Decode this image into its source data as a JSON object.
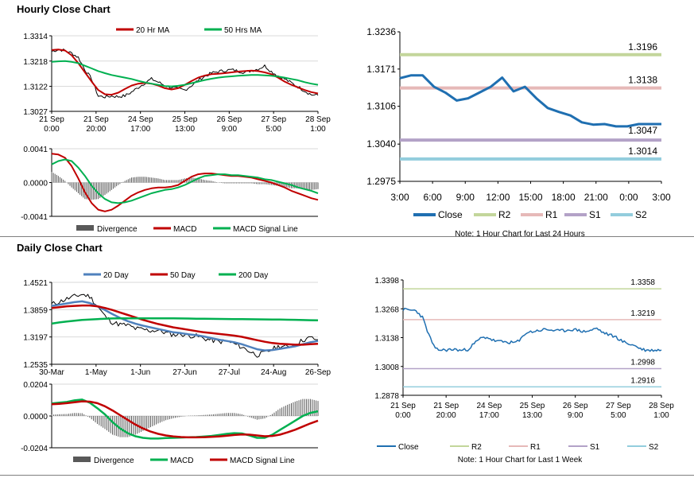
{
  "page": {
    "hourly_title": "Hourly Close Chart",
    "daily_title": "Daily Close Chart"
  },
  "chart_data": [
    {
      "id": "hourly_price",
      "type": "line",
      "title": "",
      "x_ticks": [
        [
          "21 Sep",
          "0:00"
        ],
        [
          "21 Sep",
          "20:00"
        ],
        [
          "24 Sep",
          "17:00"
        ],
        [
          "25 Sep",
          "13:00"
        ],
        [
          "26 Sep",
          "9:00"
        ],
        [
          "27 Sep",
          "5:00"
        ],
        [
          "28 Sep",
          "1:00"
        ]
      ],
      "y_ticks": [
        "1.3314",
        "1.3218",
        "1.3122",
        "1.3027"
      ],
      "ylim": [
        1.3027,
        1.3314
      ],
      "legend": [
        "20 Hr MA",
        "50 Hrs MA"
      ],
      "colors": {
        "price": "#000000",
        "ma20": "#c00000",
        "ma50": "#00b050"
      },
      "series": [
        {
          "name": "Close",
          "values": [
            1.3255,
            1.3262,
            1.3258,
            1.3248,
            1.3232,
            1.3185,
            1.315,
            1.3085,
            1.3082,
            1.3085,
            1.3083,
            1.3086,
            1.31,
            1.3118,
            1.3135,
            1.315,
            1.3138,
            1.3125,
            1.3118,
            1.3112,
            1.3108,
            1.3125,
            1.3145,
            1.316,
            1.3172,
            1.3178,
            1.3182,
            1.3185,
            1.318,
            1.3175,
            1.3182,
            1.3188,
            1.32,
            1.3178,
            1.3162,
            1.315,
            1.3135,
            1.312,
            1.3105,
            1.309,
            1.3088
          ]
        },
        {
          "name": "20 Hr MA",
          "values": [
            1.326,
            1.3262,
            1.3258,
            1.324,
            1.321,
            1.3175,
            1.314,
            1.3108,
            1.3092,
            1.309,
            1.3098,
            1.3112,
            1.3125,
            1.3132,
            1.3135,
            1.3132,
            1.3125,
            1.3115,
            1.311,
            1.3115,
            1.3128,
            1.3142,
            1.3155,
            1.3163,
            1.3168,
            1.317,
            1.3172,
            1.3175,
            1.3178,
            1.318,
            1.3182,
            1.318,
            1.3175,
            1.3168,
            1.3155,
            1.314,
            1.3128,
            1.3118,
            1.3108,
            1.31,
            1.3095
          ]
        },
        {
          "name": "50 Hrs MA",
          "values": [
            1.3215,
            1.3217,
            1.3218,
            1.3215,
            1.321,
            1.32,
            1.319,
            1.318,
            1.3172,
            1.3165,
            1.316,
            1.3155,
            1.315,
            1.3143,
            1.3137,
            1.3132,
            1.3128,
            1.3123,
            1.3122,
            1.3124,
            1.3128,
            1.3134,
            1.314,
            1.3146,
            1.3151,
            1.3155,
            1.3158,
            1.316,
            1.3162,
            1.3164,
            1.3165,
            1.3165,
            1.3164,
            1.3162,
            1.3159,
            1.3155,
            1.315,
            1.3145,
            1.3138,
            1.3132,
            1.3128
          ]
        }
      ]
    },
    {
      "id": "hourly_macd",
      "type": "line",
      "y_ticks": [
        "0.0041",
        "0.0000",
        "-0.0041"
      ],
      "ylim": [
        -0.0041,
        0.0041
      ],
      "legend": [
        "Divergence",
        "MACD",
        "MACD Signal Line"
      ],
      "colors": {
        "div": "#595959",
        "macd": "#c00000",
        "signal": "#00b050"
      },
      "series": [
        {
          "name": "MACD",
          "values": [
            0.0035,
            0.0034,
            0.003,
            0.002,
            0.0005,
            -0.0012,
            -0.0025,
            -0.0033,
            -0.0035,
            -0.0033,
            -0.0028,
            -0.0022,
            -0.0016,
            -0.0012,
            -0.0009,
            -0.0007,
            -0.0006,
            -0.0006,
            -0.0005,
            -0.0003,
            0.0002,
            0.0007,
            0.001,
            0.0011,
            0.0011,
            0.001,
            0.0009,
            0.0008,
            0.0008,
            0.0007,
            0.0006,
            0.0004,
            0.0002,
            0.0,
            -0.0003,
            -0.0006,
            -0.001,
            -0.0013,
            -0.0016,
            -0.0019,
            -0.0021
          ]
        },
        {
          "name": "MACD Signal Line",
          "values": [
            0.0022,
            0.0026,
            0.0028,
            0.0026,
            0.0018,
            0.0008,
            -0.0004,
            -0.0013,
            -0.002,
            -0.0024,
            -0.0025,
            -0.0024,
            -0.0022,
            -0.0019,
            -0.0016,
            -0.0013,
            -0.0011,
            -0.0009,
            -0.0008,
            -0.0006,
            -0.0003,
            0.0001,
            0.0005,
            0.0008,
            0.0009,
            0.001,
            0.001,
            0.0009,
            0.0009,
            0.0008,
            0.0007,
            0.0006,
            0.0004,
            0.0003,
            0.0001,
            -0.0001,
            -0.0003,
            -0.0006,
            -0.0008,
            -0.001,
            -0.0013
          ]
        }
      ]
    },
    {
      "id": "hourly_levels",
      "type": "line",
      "x_ticks": [
        "3:00",
        "6:00",
        "9:00",
        "12:00",
        "15:00",
        "18:00",
        "21:00",
        "0:00",
        "3:00"
      ],
      "y_ticks": [
        "1.3236",
        "1.3171",
        "1.3106",
        "1.3040",
        "1.2975"
      ],
      "ylim": [
        1.2975,
        1.3236
      ],
      "legend": [
        "Close",
        "R2",
        "R1",
        "S1",
        "S2"
      ],
      "note": "Note: 1 Hour Chart for Last 24 Hours",
      "levels": [
        {
          "name": "R2",
          "value": 1.3196,
          "label": "1.3196",
          "color": "#c3d69b"
        },
        {
          "name": "R1",
          "value": 1.3138,
          "label": "1.3138",
          "color": "#e6b9b8"
        },
        {
          "name": "S1",
          "value": 1.3047,
          "label": "1.3047",
          "color": "#b3a2c7"
        },
        {
          "name": "S2",
          "value": 1.3014,
          "label": "1.3014",
          "color": "#93cddd"
        }
      ],
      "colors": {
        "close": "#1f6fb1"
      },
      "series": [
        {
          "name": "Close",
          "values": [
            1.3155,
            1.316,
            1.316,
            1.314,
            1.313,
            1.3116,
            1.312,
            1.313,
            1.314,
            1.3156,
            1.3132,
            1.314,
            1.312,
            1.3103,
            1.3096,
            1.309,
            1.3078,
            1.3074,
            1.3075,
            1.3071,
            1.3071,
            1.3075,
            1.3075,
            1.3075
          ]
        }
      ]
    },
    {
      "id": "daily_price",
      "type": "line",
      "x_ticks": [
        "30-Mar",
        "1-May",
        "1-Jun",
        "27-Jun",
        "27-Jul",
        "24-Aug",
        "26-Sep"
      ],
      "y_ticks": [
        "1.4521",
        "1.3859",
        "1.3197",
        "1.2535"
      ],
      "ylim": [
        1.2535,
        1.4521
      ],
      "legend": [
        "20 Day",
        "50 Day",
        "200 Day"
      ],
      "colors": {
        "price": "#000000",
        "ma20": "#4f81bd",
        "ma50": "#c00000",
        "ma200": "#00b050"
      },
      "series": [
        {
          "name": "Close",
          "values": [
            1.399,
            1.405,
            1.412,
            1.418,
            1.423,
            1.418,
            1.395,
            1.37,
            1.355,
            1.35,
            1.348,
            1.34,
            1.338,
            1.335,
            1.336,
            1.33,
            1.325,
            1.327,
            1.323,
            1.322,
            1.316,
            1.312,
            1.308,
            1.31,
            1.303,
            1.295,
            1.285,
            1.276,
            1.281,
            1.29,
            1.298,
            1.295,
            1.302,
            1.312,
            1.318,
            1.313
          ]
        },
        {
          "name": "20 Day",
          "values": [
            1.395,
            1.398,
            1.401,
            1.404,
            1.406,
            1.402,
            1.394,
            1.385,
            1.375,
            1.366,
            1.358,
            1.352,
            1.347,
            1.343,
            1.339,
            1.335,
            1.331,
            1.329,
            1.326,
            1.324,
            1.321,
            1.317,
            1.313,
            1.31,
            1.307,
            1.302,
            1.296,
            1.29,
            1.287,
            1.288,
            1.291,
            1.294,
            1.297,
            1.302,
            1.307,
            1.31
          ]
        },
        {
          "name": "50 Day",
          "values": [
            1.39,
            1.392,
            1.394,
            1.395,
            1.396,
            1.396,
            1.394,
            1.39,
            1.385,
            1.379,
            1.373,
            1.367,
            1.361,
            1.356,
            1.351,
            1.347,
            1.343,
            1.34,
            1.337,
            1.334,
            1.331,
            1.329,
            1.327,
            1.325,
            1.323,
            1.32,
            1.316,
            1.312,
            1.308,
            1.305,
            1.303,
            1.302,
            1.301,
            1.301,
            1.302,
            1.303
          ]
        },
        {
          "name": "200 Day",
          "values": [
            1.352,
            1.355,
            1.357,
            1.359,
            1.361,
            1.362,
            1.363,
            1.364,
            1.3645,
            1.3648,
            1.365,
            1.365,
            1.365,
            1.365,
            1.365,
            1.365,
            1.3648,
            1.3645,
            1.3643,
            1.364,
            1.3638,
            1.3636,
            1.3634,
            1.3632,
            1.363,
            1.3628,
            1.3626,
            1.3624,
            1.3622,
            1.362,
            1.3618,
            1.3615,
            1.3612,
            1.3608,
            1.3604,
            1.36
          ]
        }
      ]
    },
    {
      "id": "daily_macd",
      "type": "line",
      "y_ticks": [
        "0.0204",
        "0.0000",
        "-0.0204"
      ],
      "ylim": [
        -0.0204,
        0.0204
      ],
      "legend": [
        "Divergence",
        "MACD",
        "MACD Signal Line"
      ],
      "colors": {
        "div": "#595959",
        "macd": "#00b050",
        "signal": "#c00000"
      },
      "series": [
        {
          "name": "MACD",
          "values": [
            0.008,
            0.0085,
            0.009,
            0.01,
            0.0105,
            0.0085,
            0.005,
            0.001,
            -0.004,
            -0.008,
            -0.011,
            -0.013,
            -0.014,
            -0.0145,
            -0.0145,
            -0.0142,
            -0.014,
            -0.0138,
            -0.0136,
            -0.0135,
            -0.0132,
            -0.0128,
            -0.0122,
            -0.0115,
            -0.011,
            -0.0112,
            -0.0125,
            -0.014,
            -0.014,
            -0.012,
            -0.009,
            -0.006,
            -0.003,
            0.0,
            0.002,
            0.003
          ]
        },
        {
          "name": "MACD Signal Line",
          "values": [
            0.0075,
            0.0078,
            0.0082,
            0.0088,
            0.0094,
            0.0092,
            0.0082,
            0.0062,
            0.0035,
            0.0005,
            -0.0025,
            -0.0055,
            -0.008,
            -0.01,
            -0.0115,
            -0.0125,
            -0.0131,
            -0.0135,
            -0.0137,
            -0.0137,
            -0.0136,
            -0.0134,
            -0.0131,
            -0.0127,
            -0.0122,
            -0.0119,
            -0.012,
            -0.0125,
            -0.013,
            -0.0128,
            -0.012,
            -0.0105,
            -0.0088,
            -0.0068,
            -0.0048,
            -0.003
          ]
        }
      ]
    },
    {
      "id": "daily_levels",
      "type": "line",
      "x_ticks": [
        [
          "21 Sep",
          "0:00"
        ],
        [
          "21 Sep",
          "20:00"
        ],
        [
          "24 Sep",
          "17:00"
        ],
        [
          "25 Sep",
          "13:00"
        ],
        [
          "26 Sep",
          "9:00"
        ],
        [
          "27 Sep",
          "5:00"
        ],
        [
          "28 Sep",
          "1:00"
        ]
      ],
      "y_ticks": [
        "1.3398",
        "1.3268",
        "1.3138",
        "1.3008",
        "1.2878"
      ],
      "ylim": [
        1.2878,
        1.3398
      ],
      "legend": [
        "Close",
        "R2",
        "R1",
        "S1",
        "S2"
      ],
      "note": "Note: 1 Hour Chart for Last 1 Week",
      "levels": [
        {
          "name": "R2",
          "value": 1.3358,
          "label": "1.3358",
          "color": "#c3d69b"
        },
        {
          "name": "R1",
          "value": 1.3219,
          "label": "1.3219",
          "color": "#e6b9b8"
        },
        {
          "name": "S1",
          "value": 1.2998,
          "label": "1.2998",
          "color": "#b3a2c7"
        },
        {
          "name": "S2",
          "value": 1.2916,
          "label": "1.2916",
          "color": "#93cddd"
        }
      ],
      "colors": {
        "close": "#1f6fb1"
      },
      "series": [
        {
          "name": "Close",
          "values": [
            1.3265,
            1.3262,
            1.326,
            1.323,
            1.315,
            1.3085,
            1.3082,
            1.3083,
            1.3085,
            1.308,
            1.3085,
            1.311,
            1.3135,
            1.314,
            1.3125,
            1.312,
            1.3118,
            1.3115,
            1.3122,
            1.316,
            1.3165,
            1.317,
            1.3175,
            1.3172,
            1.3168,
            1.317,
            1.3175,
            1.3172,
            1.3165,
            1.317,
            1.318,
            1.316,
            1.315,
            1.314,
            1.312,
            1.311,
            1.31,
            1.3085,
            1.308,
            1.3082,
            1.3082
          ]
        }
      ]
    }
  ]
}
